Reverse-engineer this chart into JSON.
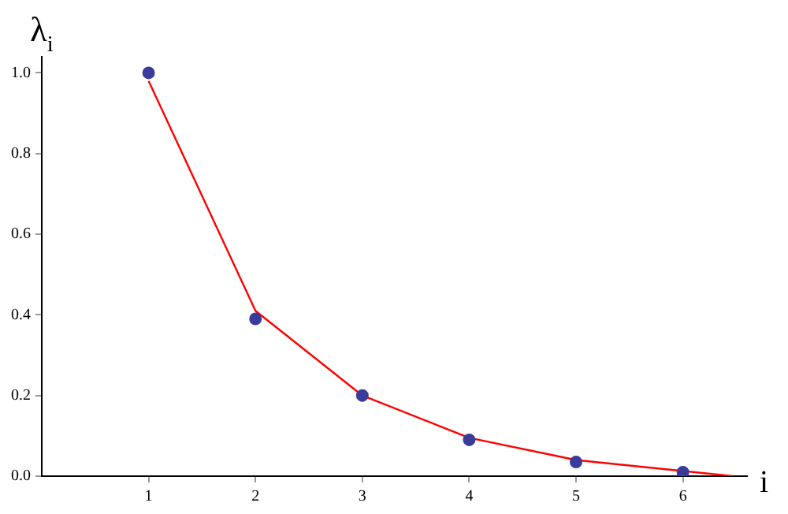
{
  "chart_data": {
    "type": "scatter",
    "xlabel": "i",
    "ylabel": "λ$_{i}$",
    "x": [
      1,
      2,
      3,
      4,
      5,
      6
    ],
    "series": [
      {
        "color": "#3b3b9b",
        "values": [
          1.0,
          0.39,
          0.2,
          0.09,
          0.035,
          0.01
        ]
      },
      {
        "type": "line",
        "marker": "none",
        "color": "#ff0000",
        "x": [
          1,
          2,
          3,
          4,
          5,
          6.47
        ],
        "values": [
          0.98,
          0.41,
          0.2,
          0.095,
          0.04,
          0
        ]
      }
    ],
    "xlim": [
      0,
      6.6
    ],
    "ylim": [
      0,
      1.04
    ],
    "xticks": [
      1,
      2,
      3,
      4,
      5,
      6
    ],
    "yticks": [
      {
        "value": 0,
        "label": "0.0"
      },
      {
        "value": 0.2,
        "label": "0.2"
      },
      {
        "value": 0.4,
        "label": "0.4"
      },
      {
        "value": 0.6,
        "label": "0.6"
      },
      {
        "value": 0.8,
        "label": "0.8"
      },
      {
        "value": 1,
        "label": "1.0"
      }
    ],
    "grid": false,
    "legend": false,
    "marker": "circle"
  }
}
